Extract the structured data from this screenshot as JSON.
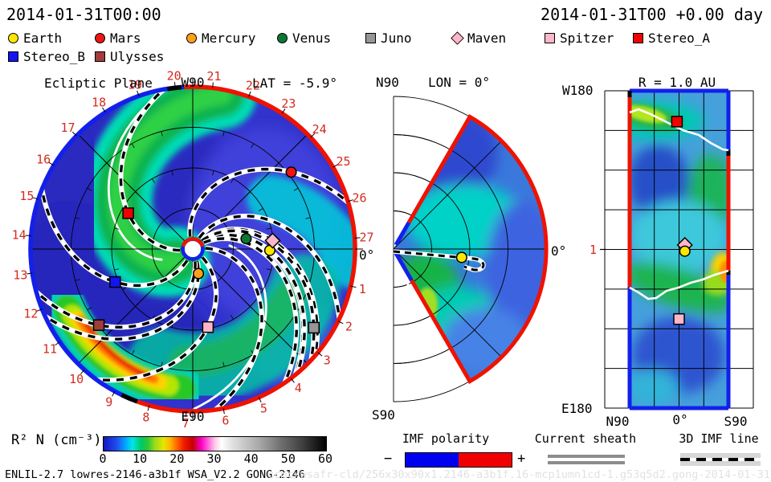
{
  "header": {
    "timestamp": "2014-01-31T00:00",
    "forecast_time": "2014-01-31T00 +0.00 day"
  },
  "legend": {
    "rows": [
      [
        {
          "label": "Earth",
          "shape": "circle",
          "color": "#ffe600"
        },
        {
          "label": "Mars",
          "shape": "circle",
          "color": "#f01414"
        },
        {
          "label": "Mercury",
          "shape": "circle",
          "color": "#ffa019"
        },
        {
          "label": "Venus",
          "shape": "circle",
          "color": "#0a7832"
        },
        {
          "label": "Juno",
          "shape": "square",
          "color": "#969696"
        },
        {
          "label": "Maven",
          "shape": "diamond",
          "color": "#ffb6c8"
        },
        {
          "label": "Spitzer",
          "shape": "square",
          "color": "#ffb6c8"
        },
        {
          "label": "Stereo_A",
          "shape": "square",
          "color": "#f00000"
        }
      ],
      [
        {
          "label": "Stereo_B",
          "shape": "square",
          "color": "#1414f0"
        },
        {
          "label": "Ulysses",
          "shape": "square",
          "color": "#a03c3c"
        }
      ]
    ]
  },
  "plots": {
    "ecliptic": {
      "title": "Ecliptic Plane",
      "w_axis": "W90",
      "e_axis": "E90",
      "lat_label": "LAT = -5.9°",
      "zero_label": "0°"
    },
    "meridional": {
      "n_axis": "N90",
      "s_axis": "S90",
      "title": "LON = 0°",
      "zero_label": "0°"
    },
    "radial_map": {
      "title": "R = 1.0 AU",
      "w_axis": "W180",
      "e_axis": "E180",
      "x_tick_n": "N90",
      "x_tick_0": "0°",
      "x_tick_s": "S90",
      "r_tick": "1"
    }
  },
  "colorbar": {
    "label": "R² N (cm⁻³)",
    "min": 0,
    "max": 60,
    "ticks": [
      "0",
      "10",
      "20",
      "30",
      "40",
      "50",
      "60"
    ]
  },
  "footer": {
    "model_version": "ENLIL-2.7 lowres-2146-a3b1f WSA_V2.2 GONG-2146",
    "imf_polarity": {
      "label": "IMF polarity",
      "minus": "−",
      "plus": "+"
    },
    "current_sheath_label": "Current sheath",
    "imf_line_label": "3D IMF line",
    "watermark": "ccmc/wsafr-cld/256x30x90x1.2146-a3b1f.16-mcp1umn1cd-1.g53q5d2.gong-2014-01-31T00    2014-01-31T00"
  },
  "chart_data": [
    {
      "type": "heatmap",
      "subtype": "polar-contour-ecliptic-plane",
      "title": "Ecliptic Plane",
      "subtitle": "LAT = -5.9°",
      "quantity": "R² N (cm⁻³)",
      "r_max_au": 2.0,
      "grid_circles_au": [
        0.5,
        1.0,
        1.5,
        2.0
      ],
      "axes": {
        "top": "W90",
        "bottom": "E90",
        "right": "0°"
      },
      "day_ticks": [
        1,
        2,
        3,
        4,
        5,
        6,
        7,
        8,
        9,
        10,
        11,
        12,
        13,
        14,
        15,
        16,
        17,
        18,
        19,
        20,
        21,
        22,
        23,
        24,
        25,
        26,
        27
      ],
      "deg_per_day": 13.19,
      "objects": [
        {
          "name": "Mercury",
          "r_au": 0.31,
          "lon_deg": -77
        },
        {
          "name": "Venus",
          "r_au": 0.67,
          "lon_deg": 11
        },
        {
          "name": "Earth",
          "r_au": 0.95,
          "lon_deg": -1
        },
        {
          "name": "Maven",
          "r_au": 0.99,
          "lon_deg": 6
        },
        {
          "name": "Mars",
          "r_au": 1.54,
          "lon_deg": 38
        },
        {
          "name": "Stereo_A",
          "r_au": 0.91,
          "lon_deg": 151
        },
        {
          "name": "Stereo_B",
          "r_au": 1.04,
          "lon_deg": -157
        },
        {
          "name": "Ulysses",
          "r_au": 1.49,
          "lon_deg": -141
        },
        {
          "name": "Spitzer",
          "r_au": 0.98,
          "lon_deg": -79
        },
        {
          "name": "Juno",
          "r_au": 1.78,
          "lon_deg": -33
        }
      ]
    },
    {
      "type": "heatmap",
      "subtype": "polar-contour-meridional",
      "title": "LON = 0°",
      "axes": {
        "top": "N90",
        "bottom": "S90",
        "right": "0°"
      },
      "filled_wedge_lat_deg": [
        -60,
        60
      ],
      "r_max_au": 2.0,
      "objects": [
        {
          "name": "Earth",
          "r_au": 0.9,
          "lat_deg": -7
        }
      ]
    },
    {
      "type": "heatmap",
      "subtype": "lat-lon-map-at-radius",
      "title": "R = 1.0 AU",
      "axes": {
        "x": [
          "N90",
          "0°",
          "S90"
        ],
        "y_top": "W180",
        "y_bottom": "E180",
        "r_tick": "1"
      },
      "filled_band_lat_deg": [
        -60,
        60
      ],
      "objects": [
        {
          "name": "Stereo_A",
          "lat_deg": 2.5,
          "lon_deg": -145
        },
        {
          "name": "Maven",
          "lat_deg": -7,
          "lon_deg": -5
        },
        {
          "name": "Earth",
          "lat_deg": -7,
          "lon_deg": 2
        },
        {
          "name": "Spitzer",
          "lat_deg": 0,
          "lon_deg": 79
        }
      ]
    }
  ]
}
